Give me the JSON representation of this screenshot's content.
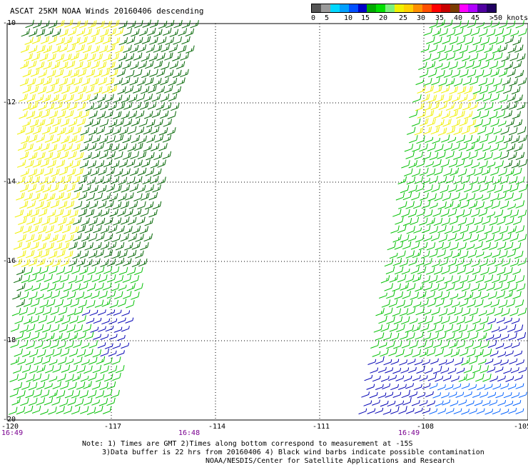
{
  "title": "ASCAT 25KM NOAA Winds 20160406 descending",
  "legend": {
    "labels": [
      "0",
      "5",
      "10",
      "15",
      "20",
      "25",
      "30",
      "35",
      "40",
      "45",
      ">50 knots"
    ],
    "colors": [
      "#555555",
      "#9a9a9a",
      "#00d8ff",
      "#00a0ff",
      "#0050ff",
      "#0000c8",
      "#00aa00",
      "#00e000",
      "#7cf07c",
      "#f0f000",
      "#ffd000",
      "#ff9000",
      "#ff5000",
      "#ff0000",
      "#c80000",
      "#7a3c00",
      "#ff00ff",
      "#b000ff",
      "#5000a0",
      "#200060"
    ]
  },
  "map": {
    "lon_ticks": [
      "-120",
      "-117",
      "-114",
      "-111",
      "-108",
      "-105"
    ],
    "lat_ticks": [
      "-10",
      "-12",
      "-14",
      "-16",
      "-18",
      "-20"
    ],
    "time_labels": [
      "16:49",
      "16:48",
      "16:49"
    ],
    "lon_range": [
      -120,
      -105
    ],
    "lat_range": [
      -20,
      -10
    ],
    "grid": true,
    "swaths": [
      {
        "name": "west",
        "regions": [
          {
            "color": "#006400",
            "speed_knots": 17
          },
          {
            "color": "#f0f000",
            "speed_knots": 22
          },
          {
            "color": "#00c000",
            "speed_knots": 12
          },
          {
            "color": "#0000b4",
            "speed_knots": 7
          }
        ]
      },
      {
        "name": "east",
        "regions": [
          {
            "color": "#00c000",
            "speed_knots": 12
          },
          {
            "color": "#f0f000",
            "speed_knots": 21
          },
          {
            "color": "#006400",
            "speed_knots": 16
          },
          {
            "color": "#0000b4",
            "speed_knots": 7
          },
          {
            "color": "#0060ff",
            "speed_knots": 6
          }
        ]
      }
    ]
  },
  "notes": [
    "Note: 1) Times are GMT 2)Times along bottom correspond to measurement at -15S",
    "3)Data buffer is 22 hrs from 20160406 4) Black wind barbs indicate possible contamination",
    "NOAA/NESDIS/Center for Satellite Applications and Research"
  ]
}
